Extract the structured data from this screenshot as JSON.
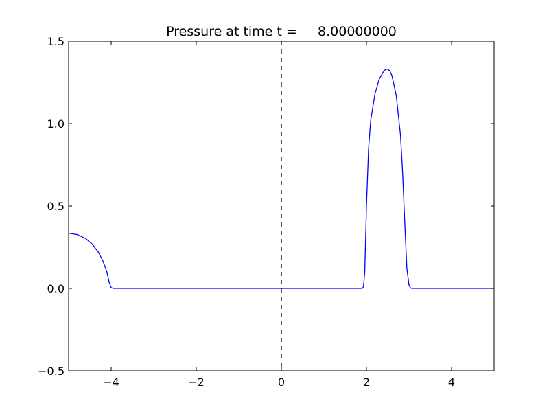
{
  "chart_data": {
    "type": "line",
    "title": "Pressure at time t =     8.00000000",
    "xlabel": "",
    "ylabel": "",
    "xlim": [
      -5,
      5
    ],
    "ylim": [
      -0.5,
      1.5
    ],
    "xticks": [
      -4,
      -2,
      0,
      2,
      4
    ],
    "xtick_labels": [
      "−4",
      "−2",
      "0",
      "2",
      "4"
    ],
    "yticks": [
      -0.5,
      0.0,
      0.5,
      1.0,
      1.5
    ],
    "ytick_labels": [
      "−0.5",
      "0.0",
      "0.5",
      "1.0",
      "1.5"
    ],
    "grid": false,
    "legend": false,
    "vline": {
      "x": 0,
      "style": "dashed",
      "color": "#000000"
    },
    "series": [
      {
        "color": "#0000ff",
        "x": [
          -5.0,
          -4.8,
          -4.6,
          -4.45,
          -4.3,
          -4.2,
          -4.1,
          -4.05,
          -4.0,
          -3.95,
          -3.5,
          -2.0,
          0.0,
          1.5,
          1.9,
          1.93,
          1.96,
          2.0,
          2.05,
          2.1,
          2.2,
          2.3,
          2.4,
          2.45,
          2.5,
          2.55,
          2.6,
          2.7,
          2.8,
          2.85,
          2.9,
          2.95,
          3.0,
          3.03,
          3.06,
          3.1,
          4.0,
          5.0
        ],
        "y": [
          0.335,
          0.327,
          0.303,
          0.27,
          0.22,
          0.17,
          0.1,
          0.04,
          0.005,
          0.0,
          0.0,
          0.0,
          0.0,
          0.0,
          0.0,
          0.01,
          0.1,
          0.5,
          0.85,
          1.02,
          1.18,
          1.27,
          1.315,
          1.33,
          1.33,
          1.32,
          1.29,
          1.17,
          0.93,
          0.7,
          0.4,
          0.12,
          0.02,
          0.005,
          0.0,
          0.0,
          0.0,
          0.0
        ]
      }
    ]
  }
}
